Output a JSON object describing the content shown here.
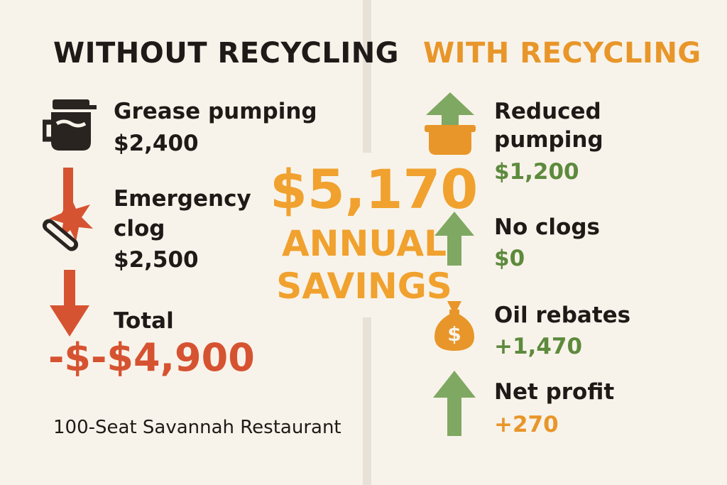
{
  "left": {
    "heading": "WITHOUT RECYCLING",
    "items": [
      {
        "label": "Grease pumping",
        "value": "$2,400",
        "icon": "grease-pot-icon"
      },
      {
        "label_lines": [
          "Emergency",
          "clog"
        ],
        "value": "$2,500",
        "icon": "clog-burst-icon"
      },
      {
        "label": "Total",
        "value": "-$-$4,900",
        "icon": "down-arrow-icon"
      }
    ],
    "footer": "100-Seat Savannah Restaurant"
  },
  "center": {
    "amount": "$5,170",
    "line1": "ANNUAL",
    "line2": "SAVINGS"
  },
  "right": {
    "heading": "WITH RECYCLING",
    "items": [
      {
        "label_lines": [
          "Reduced",
          "pumping"
        ],
        "value": "$1,200",
        "icon": "bowl-up-arrow-icon"
      },
      {
        "label": "No clogs",
        "value": "$0",
        "icon": "up-arrow-icon"
      },
      {
        "label": "Oil rebates",
        "value": "+1,470",
        "icon": "money-bag-icon"
      },
      {
        "label": "Net profit",
        "value": "+270",
        "icon": "up-arrow-icon"
      }
    ]
  },
  "colors": {
    "background": "#f8f3ea",
    "red": "#d65331",
    "green": "#5d8a3d",
    "arrow_green": "#7fa862",
    "orange": "#e8962a",
    "dark": "#1f1a17"
  }
}
